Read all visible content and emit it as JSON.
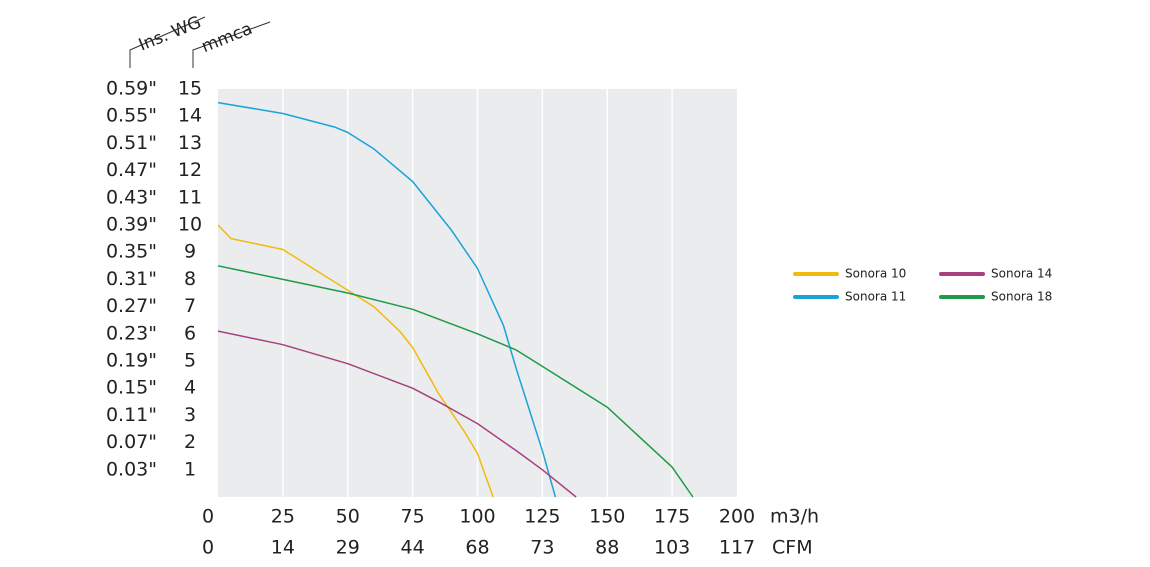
{
  "chart_data": {
    "type": "line",
    "x_unit_label": "m3/h",
    "x2_unit_label": "CFM",
    "y_unit_label": "mmca",
    "y2_unit_label": "Ins. WG",
    "xlim": [
      0,
      200
    ],
    "xticks": [
      0,
      25,
      50,
      75,
      100,
      125,
      150,
      175,
      200
    ],
    "x2_labels": [
      "0",
      "14",
      "29",
      "44",
      "68",
      "73",
      "88",
      "103",
      "117"
    ],
    "ylim": [
      0,
      15
    ],
    "yticks": [
      1,
      2,
      3,
      4,
      5,
      6,
      7,
      8,
      9,
      10,
      11,
      12,
      13,
      14,
      15
    ],
    "y2lim": [
      -0.01,
      0.59
    ],
    "y2ticks": [
      {
        "value": 0.03,
        "label": "0.03\""
      },
      {
        "value": 0.07,
        "label": "0.07\""
      },
      {
        "value": 0.11,
        "label": "0.11\""
      },
      {
        "value": 0.15,
        "label": "0.15\""
      },
      {
        "value": 0.19,
        "label": "0.19\""
      },
      {
        "value": 0.23,
        "label": "0.23\""
      },
      {
        "value": 0.27,
        "label": "0.27\""
      },
      {
        "value": 0.31,
        "label": "0.31\""
      },
      {
        "value": 0.35,
        "label": "0.35\""
      },
      {
        "value": 0.39,
        "label": "0.39\""
      },
      {
        "value": 0.43,
        "label": "0.43\""
      },
      {
        "value": 0.47,
        "label": "0.47\""
      },
      {
        "value": 0.51,
        "label": "0.51\""
      },
      {
        "value": 0.55,
        "label": "0.55\""
      },
      {
        "value": 0.59,
        "label": "0.59\""
      }
    ],
    "grid": true,
    "legend_position": "right",
    "series": [
      {
        "name": "Sonora 10",
        "color": "#f2b90f",
        "x": [
          0,
          5,
          15,
          25,
          40,
          50,
          60,
          70,
          75,
          85,
          95,
          100,
          106
        ],
        "values": [
          10,
          9.5,
          9.3,
          9.1,
          8.2,
          7.6,
          7.0,
          6.1,
          5.5,
          3.8,
          2.4,
          1.6,
          0
        ]
      },
      {
        "name": "Sonora 11",
        "color": "#1aa3d9",
        "x": [
          0,
          25,
          45,
          50,
          60,
          75,
          90,
          100,
          110,
          115,
          120,
          125,
          130
        ],
        "values": [
          14.5,
          14.1,
          13.6,
          13.4,
          12.8,
          11.6,
          9.8,
          8.4,
          6.3,
          4.7,
          3.2,
          1.7,
          0
        ]
      },
      {
        "name": "Sonora 14",
        "color": "#a8407e",
        "x": [
          0,
          25,
          50,
          75,
          85,
          100,
          115,
          125,
          138
        ],
        "values": [
          6.1,
          5.6,
          4.9,
          4.0,
          3.5,
          2.7,
          1.7,
          1.0,
          0
        ]
      },
      {
        "name": "Sonora 18",
        "color": "#1e9a48",
        "x": [
          0,
          25,
          50,
          75,
          100,
          115,
          125,
          150,
          175,
          183
        ],
        "values": [
          8.5,
          8.0,
          7.5,
          6.9,
          6.0,
          5.4,
          4.8,
          3.3,
          1.1,
          0
        ]
      }
    ]
  }
}
